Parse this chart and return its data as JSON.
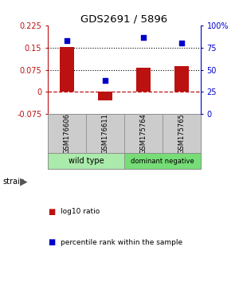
{
  "title": "GDS2691 / 5896",
  "samples": [
    "GSM176606",
    "GSM176611",
    "GSM175764",
    "GSM175765"
  ],
  "log10_ratios": [
    0.151,
    -0.028,
    0.083,
    0.088
  ],
  "percentile_ranks": [
    83,
    38,
    86,
    80
  ],
  "groups": [
    {
      "label": "wild type",
      "samples": [
        0,
        1
      ],
      "color": "#aaeaaa"
    },
    {
      "label": "dominant negative",
      "samples": [
        2,
        3
      ],
      "color": "#77dd77"
    }
  ],
  "bar_color": "#bb1111",
  "dot_color": "#0000cc",
  "ylim_left": [
    -0.075,
    0.225
  ],
  "ylim_right": [
    0,
    100
  ],
  "yticks_left": [
    -0.075,
    0,
    0.075,
    0.15,
    0.225
  ],
  "ytick_labels_left": [
    "-0.075",
    "0",
    "0.075",
    "0.15",
    "0.225"
  ],
  "yticks_right": [
    0,
    25,
    50,
    75,
    100
  ],
  "ytick_labels_right": [
    "0",
    "25",
    "50",
    "75",
    "100%"
  ],
  "hlines": [
    0.075,
    0.15
  ],
  "zero_line": 0,
  "background_color": "#ffffff",
  "sample_box_color": "#cccccc",
  "strain_label": "strain",
  "legend_items": [
    {
      "label": "log10 ratio",
      "color": "#bb1111"
    },
    {
      "label": "percentile rank within the sample",
      "color": "#0000cc"
    }
  ]
}
